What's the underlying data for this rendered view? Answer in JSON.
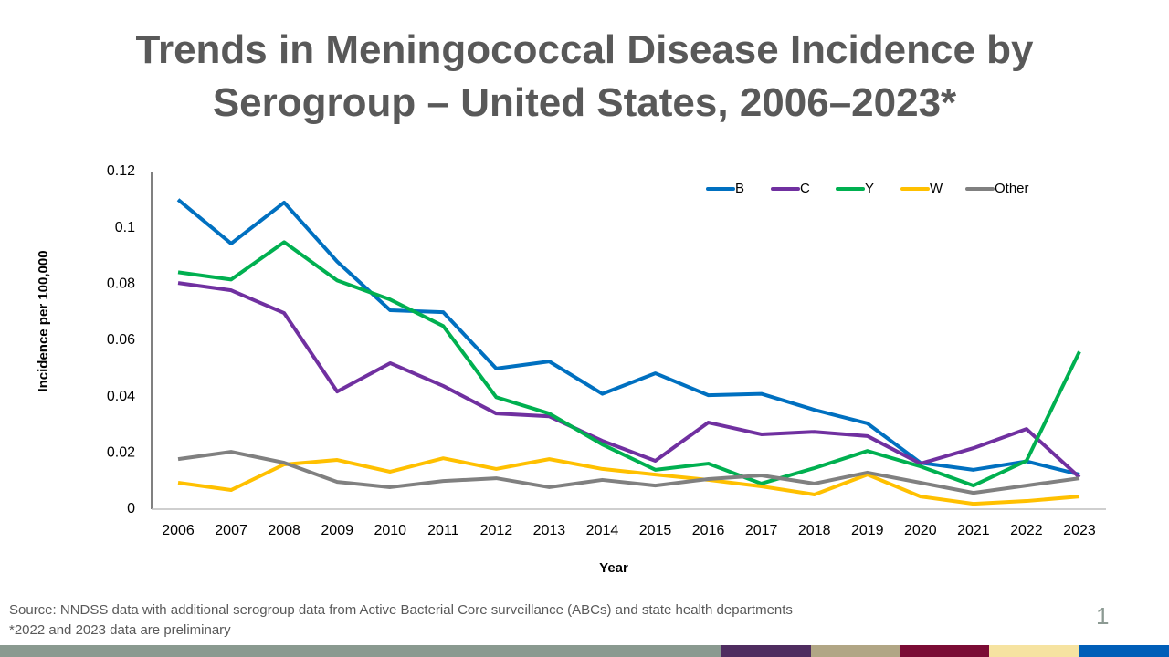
{
  "chart_data": {
    "type": "line",
    "title": [
      "Trends in Meningococcal Disease Incidence by",
      "Serogroup – United States, 2006–2023*"
    ],
    "x_label": "Year",
    "y_label": "Incidence per 100,000",
    "categories": [
      "2006",
      "2007",
      "2008",
      "2009",
      "2010",
      "2011",
      "2012",
      "2013",
      "2014",
      "2015",
      "2016",
      "2017",
      "2018",
      "2019",
      "2020",
      "2021",
      "2022",
      "2023"
    ],
    "series": [
      {
        "name": "B",
        "color": "#0070c0",
        "values": [
          0.11,
          0.0944,
          0.109,
          0.088,
          0.0707,
          0.07,
          0.05,
          0.0525,
          0.041,
          0.0483,
          0.0405,
          0.041,
          0.0353,
          0.0305,
          0.0165,
          0.014,
          0.017,
          0.0123
        ]
      },
      {
        "name": "C",
        "color": "#7030a0",
        "values": [
          0.0804,
          0.0778,
          0.0697,
          0.0418,
          0.0519,
          0.0438,
          0.034,
          0.033,
          0.0243,
          0.0172,
          0.0308,
          0.0266,
          0.0275,
          0.026,
          0.0162,
          0.0217,
          0.0285,
          0.0113
        ]
      },
      {
        "name": "Y",
        "color": "#00b050",
        "values": [
          0.0842,
          0.0816,
          0.0949,
          0.0813,
          0.0745,
          0.0651,
          0.0398,
          0.034,
          0.023,
          0.014,
          0.0162,
          0.0091,
          0.0146,
          0.0207,
          0.0152,
          0.0084,
          0.0172,
          0.056
        ]
      },
      {
        "name": "W",
        "color": "#ffc000",
        "values": [
          0.0094,
          0.0068,
          0.0159,
          0.0175,
          0.0133,
          0.0181,
          0.0143,
          0.0178,
          0.0143,
          0.0123,
          0.0104,
          0.0081,
          0.0052,
          0.0123,
          0.0045,
          0.0019,
          0.0029,
          0.0045
        ]
      },
      {
        "name": "Other",
        "color": "#808080",
        "values": [
          0.0178,
          0.0204,
          0.0165,
          0.0097,
          0.0078,
          0.01,
          0.011,
          0.0078,
          0.0104,
          0.0084,
          0.0107,
          0.012,
          0.0091,
          0.013,
          0.0094,
          0.0058,
          0.0084,
          0.011
        ]
      }
    ],
    "ylim": [
      0,
      0.12
    ],
    "yticks": [
      0,
      0.02,
      0.04,
      0.06,
      0.08,
      0.1,
      0.12
    ],
    "grid": false,
    "legend": "top-right"
  },
  "footer": {
    "source": "Source: NNDSS data with additional serogroup data from Active Bacterial Core surveillance (ABCs) and state health departments",
    "note": "*2022 and 2023 data are preliminary",
    "page_number": 1
  }
}
